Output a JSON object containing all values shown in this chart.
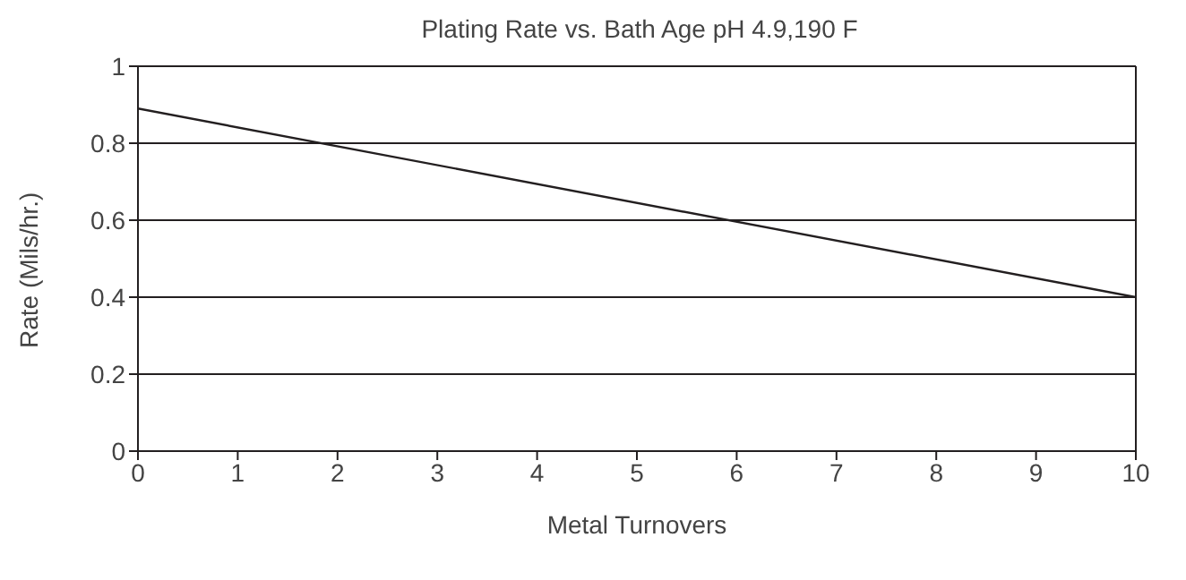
{
  "chart_data": {
    "type": "line",
    "title": "Plating Rate vs. Bath Age pH 4.9,190 F",
    "xlabel": "Metal Turnovers",
    "ylabel": "Rate (Mils/hr.)",
    "x": [
      0,
      10
    ],
    "series": [
      {
        "color": "#231f20",
        "values": [
          0.89,
          0.4
        ]
      }
    ],
    "xlim": [
      0,
      10
    ],
    "xticks": [
      0,
      1,
      2,
      3,
      4,
      5,
      6,
      7,
      8,
      9,
      10
    ],
    "ylim": [
      0,
      1
    ],
    "yticks": [
      0,
      0.2,
      0.4,
      0.6,
      0.8,
      1
    ],
    "grid": "y",
    "marker": "none",
    "line_style": "solid"
  }
}
